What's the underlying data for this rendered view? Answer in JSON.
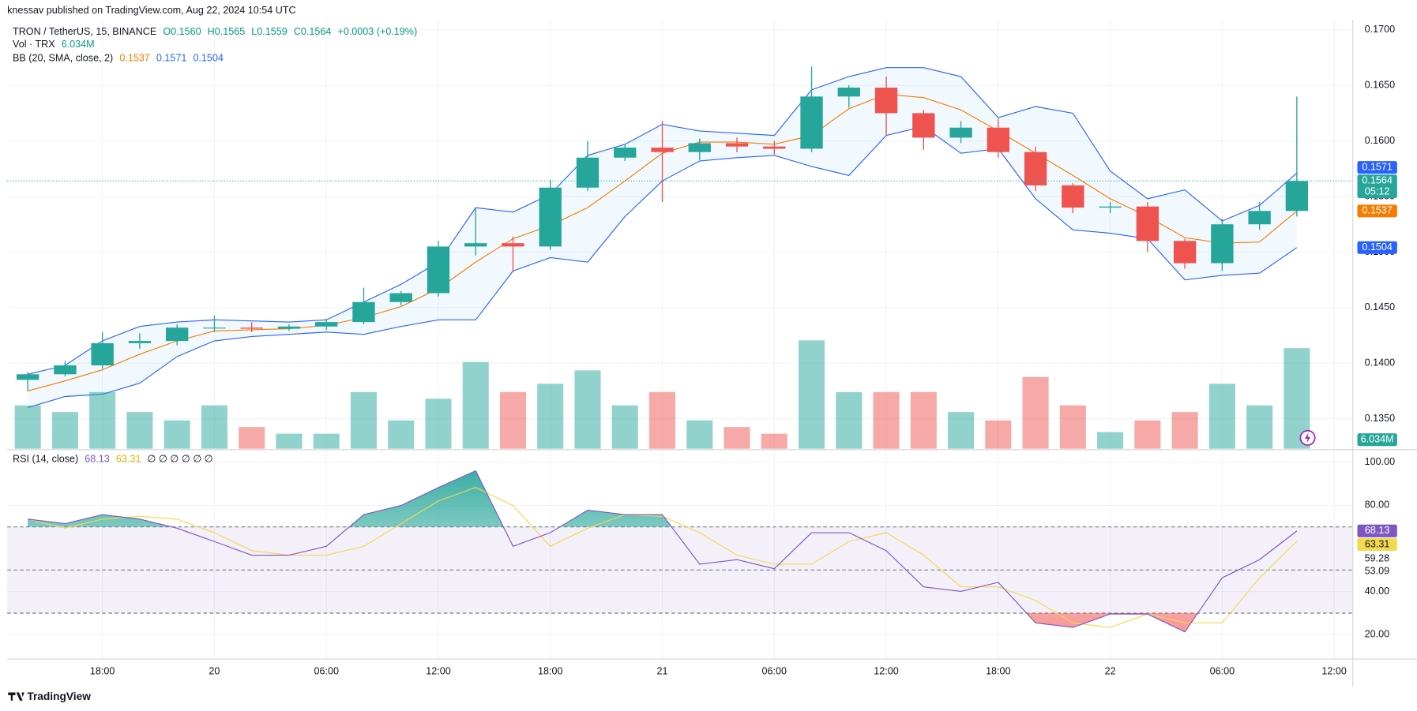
{
  "header": "knessav published on TradingView.com, Aug 22, 2024 10:54 UTC",
  "footer": "TradingView",
  "chart_data": {
    "type": "candlestick",
    "symbol": "TRON / TetherUS, 15, BINANCE",
    "ohlc_legend": [
      "O0.1560",
      "H0.1565",
      "L0.1559",
      "C0.1564"
    ],
    "change": "+0.0003 (+0.19%)",
    "volume_title": "Vol · TRX",
    "volume_label": "6.034M",
    "bb_title": "BB (20, SMA, close, 2)",
    "rsi_title": "RSI (14, close)",
    "rsi_legend_extra": "∅ ∅ ∅ ∅ ∅ ∅",
    "countdown": "05:12",
    "xlim": [
      -0.55,
      35.5
    ],
    "xticks": [
      {
        "value": 2,
        "label": "18:00"
      },
      {
        "value": 5,
        "label": "20"
      },
      {
        "value": 8,
        "label": "06:00"
      },
      {
        "value": 11,
        "label": "12:00"
      },
      {
        "value": 14,
        "label": "18:00"
      },
      {
        "value": 17,
        "label": "21"
      },
      {
        "value": 20,
        "label": "06:00"
      },
      {
        "value": 23,
        "label": "12:00"
      },
      {
        "value": 26,
        "label": "18:00"
      },
      {
        "value": 29,
        "label": "22"
      },
      {
        "value": 32,
        "label": "06:00"
      },
      {
        "value": 35,
        "label": "12:00"
      }
    ],
    "ylim": [
      0.1323,
      0.1709
    ],
    "yticks": [
      {
        "value": 0.135,
        "label": "0.1350"
      },
      {
        "value": 0.14,
        "label": "0.1400"
      },
      {
        "value": 0.145,
        "label": "0.1450"
      },
      {
        "value": 0.15,
        "label": "0.1500"
      },
      {
        "value": 0.155,
        "label": "0.1550"
      },
      {
        "value": 0.16,
        "label": "0.1600"
      },
      {
        "value": 0.165,
        "label": "0.1650"
      },
      {
        "value": 0.17,
        "label": "0.1700"
      }
    ],
    "up_color": "#26a69a",
    "down_color": "#ef5350",
    "candles": [
      [
        0.1385,
        0.1392,
        0.1375,
        0.139
      ],
      [
        0.139,
        0.1402,
        0.1388,
        0.1398
      ],
      [
        0.1398,
        0.1428,
        0.1395,
        0.1418
      ],
      [
        0.1418,
        0.1427,
        0.1413,
        0.142
      ],
      [
        0.142,
        0.1435,
        0.1416,
        0.1432
      ],
      [
        0.1432,
        0.1443,
        0.1428,
        0.1432
      ],
      [
        0.1432,
        0.1437,
        0.1428,
        0.1431
      ],
      [
        0.1431,
        0.1435,
        0.1429,
        0.1433
      ],
      [
        0.1433,
        0.144,
        0.143,
        0.1437
      ],
      [
        0.1437,
        0.1468,
        0.1435,
        0.1455
      ],
      [
        0.1455,
        0.1465,
        0.1452,
        0.1463
      ],
      [
        0.1463,
        0.151,
        0.146,
        0.1505
      ],
      [
        0.1505,
        0.154,
        0.1497,
        0.1508
      ],
      [
        0.1508,
        0.1514,
        0.1482,
        0.1505
      ],
      [
        0.1505,
        0.1565,
        0.1502,
        0.1558
      ],
      [
        0.1558,
        0.16,
        0.1555,
        0.1585
      ],
      [
        0.1585,
        0.1597,
        0.1582,
        0.1594
      ],
      [
        0.1594,
        0.1618,
        0.1545,
        0.159
      ],
      [
        0.159,
        0.1602,
        0.1583,
        0.1598
      ],
      [
        0.1598,
        0.1603,
        0.159,
        0.1595
      ],
      [
        0.1595,
        0.16,
        0.1588,
        0.1593
      ],
      [
        0.1593,
        0.1667,
        0.159,
        0.164
      ],
      [
        0.164,
        0.165,
        0.163,
        0.1648
      ],
      [
        0.1648,
        0.1658,
        0.1605,
        0.1625
      ],
      [
        0.1625,
        0.1628,
        0.1592,
        0.1603
      ],
      [
        0.1603,
        0.1618,
        0.1598,
        0.1612
      ],
      [
        0.1612,
        0.162,
        0.1585,
        0.159
      ],
      [
        0.159,
        0.1595,
        0.1555,
        0.156
      ],
      [
        0.156,
        0.1562,
        0.1535,
        0.154
      ],
      [
        0.154,
        0.1545,
        0.1535,
        0.1541
      ],
      [
        0.1541,
        0.1545,
        0.15,
        0.151
      ],
      [
        0.151,
        0.1512,
        0.1485,
        0.149
      ],
      [
        0.149,
        0.153,
        0.1483,
        0.1525
      ],
      [
        0.1525,
        0.1545,
        0.152,
        0.1537
      ],
      [
        0.1537,
        0.164,
        0.1532,
        0.1564
      ]
    ],
    "bb_color": "#2962ff",
    "bb_basis_color": "#f57c00",
    "bb_upper": [
      0.139,
      0.1398,
      0.142,
      0.1433,
      0.1437,
      0.1439,
      0.1438,
      0.1437,
      0.1439,
      0.1455,
      0.1471,
      0.1491,
      0.154,
      0.1536,
      0.1552,
      0.1587,
      0.1597,
      0.1615,
      0.1609,
      0.1607,
      0.1605,
      0.1646,
      0.1658,
      0.1666,
      0.1666,
      0.1658,
      0.1621,
      0.1631,
      0.1625,
      0.1573,
      0.1548,
      0.1556,
      0.1528,
      0.1542,
      0.1571
    ],
    "bb_basis": [
      0.1375,
      0.1384,
      0.1394,
      0.1408,
      0.142,
      0.1429,
      0.143,
      0.1431,
      0.1434,
      0.1441,
      0.1451,
      0.1467,
      0.1491,
      0.1512,
      0.1524,
      0.154,
      0.1564,
      0.1589,
      0.1599,
      0.1599,
      0.1597,
      0.1605,
      0.1629,
      0.1642,
      0.1639,
      0.1628,
      0.1609,
      0.1589,
      0.1569,
      0.1548,
      0.1532,
      0.1513,
      0.1508,
      0.1509,
      0.1537
    ],
    "bb_lower": [
      0.136,
      0.137,
      0.1372,
      0.1382,
      0.1406,
      0.142,
      0.1424,
      0.1426,
      0.1428,
      0.1426,
      0.1433,
      0.1439,
      0.1439,
      0.1483,
      0.1495,
      0.1491,
      0.1532,
      0.1564,
      0.1582,
      0.1585,
      0.1587,
      0.1577,
      0.1569,
      0.1605,
      0.1613,
      0.1589,
      0.1593,
      0.1548,
      0.152,
      0.1517,
      0.1512,
      0.1475,
      0.1479,
      0.1481,
      0.1504
    ],
    "volume": [
      2.6,
      2.2,
      3.4,
      2.2,
      1.7,
      2.6,
      1.3,
      0.9,
      0.9,
      3.4,
      1.7,
      3.0,
      5.2,
      3.4,
      3.9,
      4.7,
      2.6,
      3.4,
      1.7,
      1.3,
      0.9,
      6.5,
      3.4,
      3.4,
      3.4,
      2.2,
      1.7,
      4.3,
      2.6,
      1.0,
      1.7,
      2.2,
      3.9,
      2.6,
      6.034
    ],
    "rsi_color": "#7e57c2",
    "rsi_ma_color": "#f2d94e",
    "rsi": [
      73.6,
      71.5,
      75.7,
      73.6,
      69.4,
      63.2,
      56.9,
      56.9,
      61.0,
      75.7,
      79.9,
      88.3,
      96.0,
      61.0,
      67.3,
      77.8,
      75.7,
      75.7,
      52.7,
      54.8,
      50.6,
      67.3,
      67.3,
      59.0,
      42.2,
      40.1,
      44.3,
      25.5,
      23.4,
      29.6,
      29.6,
      21.3,
      46.4,
      54.8,
      68.13
    ],
    "rsi_ma": [
      73.6,
      69.4,
      73.6,
      74.9,
      73.6,
      67.3,
      59.0,
      56.9,
      56.9,
      61.0,
      71.5,
      82.0,
      88.3,
      79.9,
      61.0,
      69.4,
      75.7,
      74.9,
      67.3,
      56.9,
      52.7,
      52.7,
      63.2,
      67.3,
      56.9,
      42.2,
      42.2,
      35.9,
      25.5,
      23.4,
      29.6,
      25.5,
      25.5,
      46.4,
      63.31
    ],
    "rsi_ylim": [
      8.7,
      105
    ],
    "rsi_yticks": [
      {
        "value": 20,
        "label": "20.00"
      },
      {
        "value": 40,
        "label": "40.00"
      },
      {
        "value": 80,
        "label": "80.00"
      },
      {
        "value": 100,
        "label": "100.00"
      }
    ],
    "rsi_levels": [
      30,
      50,
      70
    ],
    "rsi_extra_axis_labels": [
      "59.28",
      "53.09"
    ],
    "grid": true
  }
}
